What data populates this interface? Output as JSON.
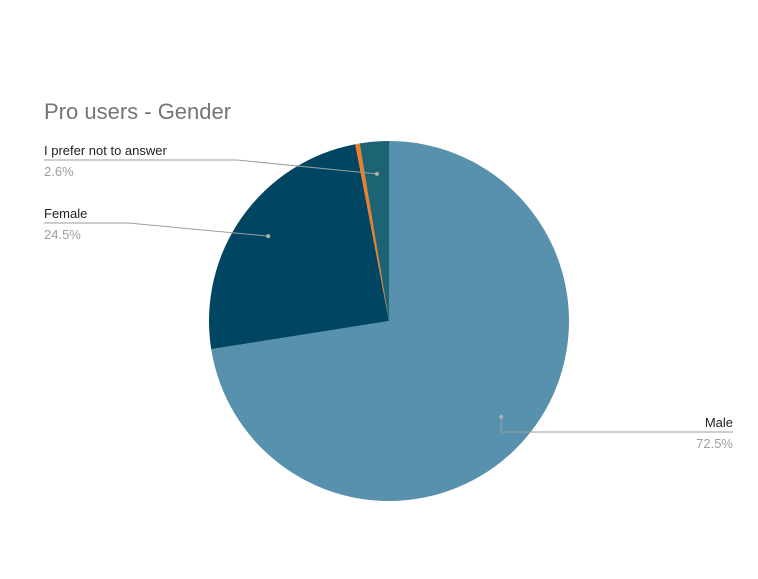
{
  "chart_data": {
    "type": "pie",
    "title": "Pro users - Gender",
    "slices": [
      {
        "label": "Male",
        "value": 72.5,
        "value_label": "72.5%",
        "color": "#5891AD"
      },
      {
        "label": "Female",
        "value": 24.5,
        "value_label": "24.5%",
        "color": "#004561"
      },
      {
        "label": "",
        "value": 0.4,
        "value_label": "",
        "color": "#F07E26"
      },
      {
        "label": "I prefer not to answer",
        "value": 2.6,
        "value_label": "2.6%",
        "color": "#1C6373"
      }
    ],
    "start_angle_deg": 0,
    "direction": "clockwise",
    "legend": "none",
    "leader_labels": true
  },
  "colors": {
    "background": "#FFFFFF",
    "title": "#757575",
    "label": "#222222",
    "value_label": "#9E9E9E",
    "leader_line": "#9E9E9E"
  }
}
